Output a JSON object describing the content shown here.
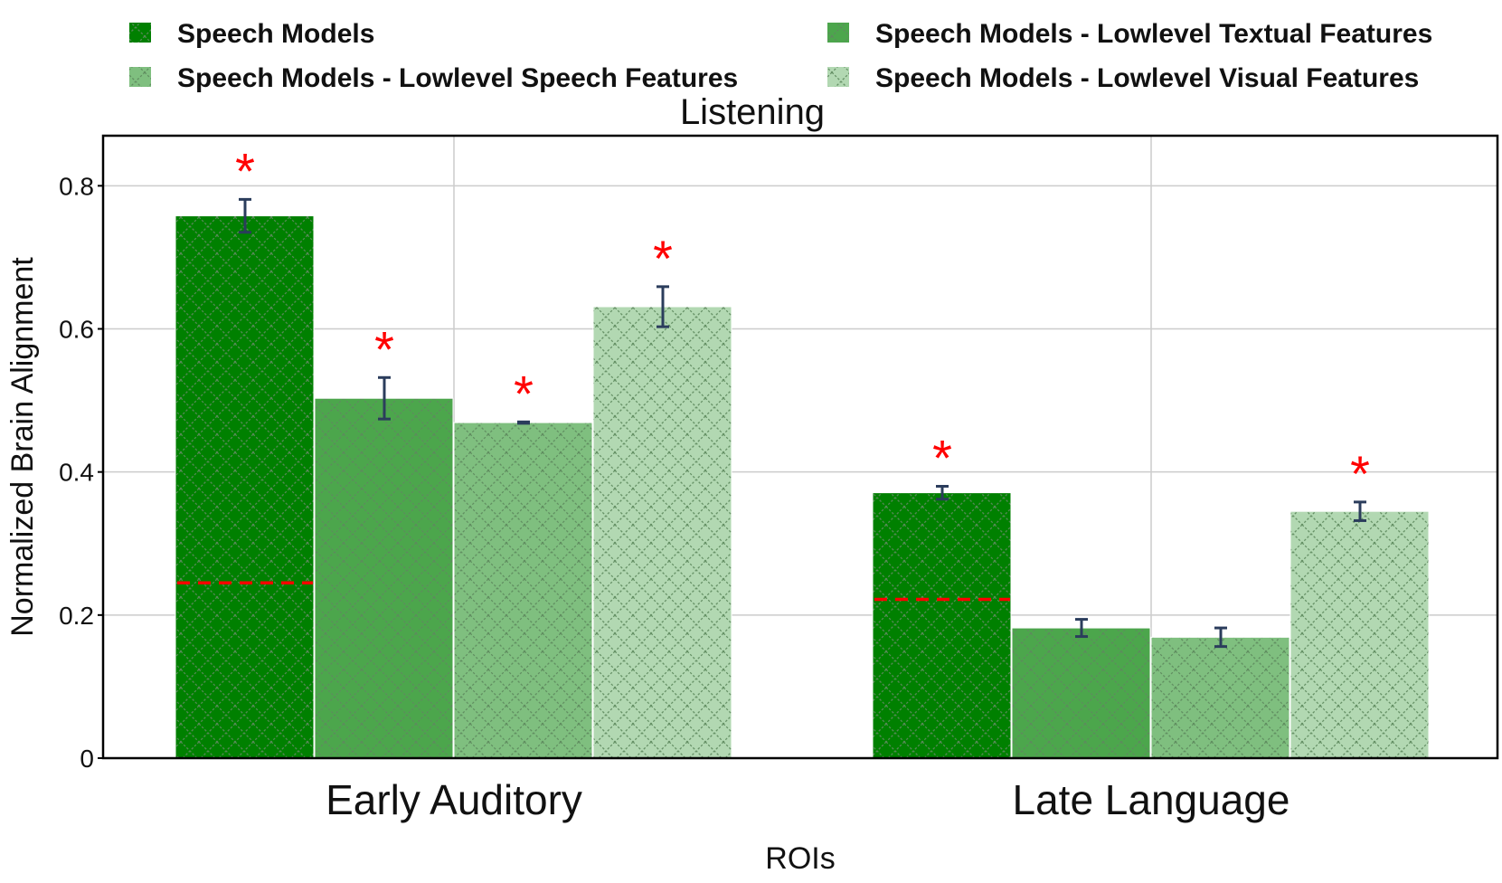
{
  "chart_data": {
    "type": "bar",
    "title": "Listening",
    "xlabel": "ROIs",
    "ylabel": "Normalized Brain Alignment",
    "ylim": [
      0,
      0.87
    ],
    "yticks": [
      0,
      0.2,
      0.4,
      0.6,
      0.8
    ],
    "ytick_labels": [
      "0",
      "0.2",
      "0.4",
      "0.6",
      "0.8"
    ],
    "grid": true,
    "legend_position": "top",
    "categories": [
      "Early Auditory",
      "Late Language"
    ],
    "series": [
      {
        "name": "Speech Models",
        "color": "#008000",
        "values": [
          0.758,
          0.371
        ],
        "errors": [
          0.023,
          0.009
        ],
        "significant": [
          true,
          true
        ],
        "baseline": [
          0.245,
          0.222
        ]
      },
      {
        "name": "Speech Models - Lowlevel Textual Features",
        "color": "#4ca64c",
        "values": [
          0.503,
          0.182
        ],
        "errors": [
          0.029,
          0.012
        ],
        "significant": [
          true,
          false
        ]
      },
      {
        "name": "Speech Models - Lowlevel Speech Features",
        "color": "#7fbf7f",
        "values": [
          0.469,
          0.169
        ],
        "errors": [
          0.001,
          0.013
        ],
        "significant": [
          true,
          false
        ]
      },
      {
        "name": "Speech Models - Lowlevel Visual Features",
        "color": "#b2d8b2",
        "values": [
          0.631,
          0.345
        ],
        "errors": [
          0.028,
          0.013
        ],
        "significant": [
          true,
          true
        ]
      }
    ],
    "significance_marker": "*",
    "pattern_color": "#5e8a5e",
    "errorbar_color": "#2b3d5c",
    "baseline_color": "#ff0000"
  }
}
